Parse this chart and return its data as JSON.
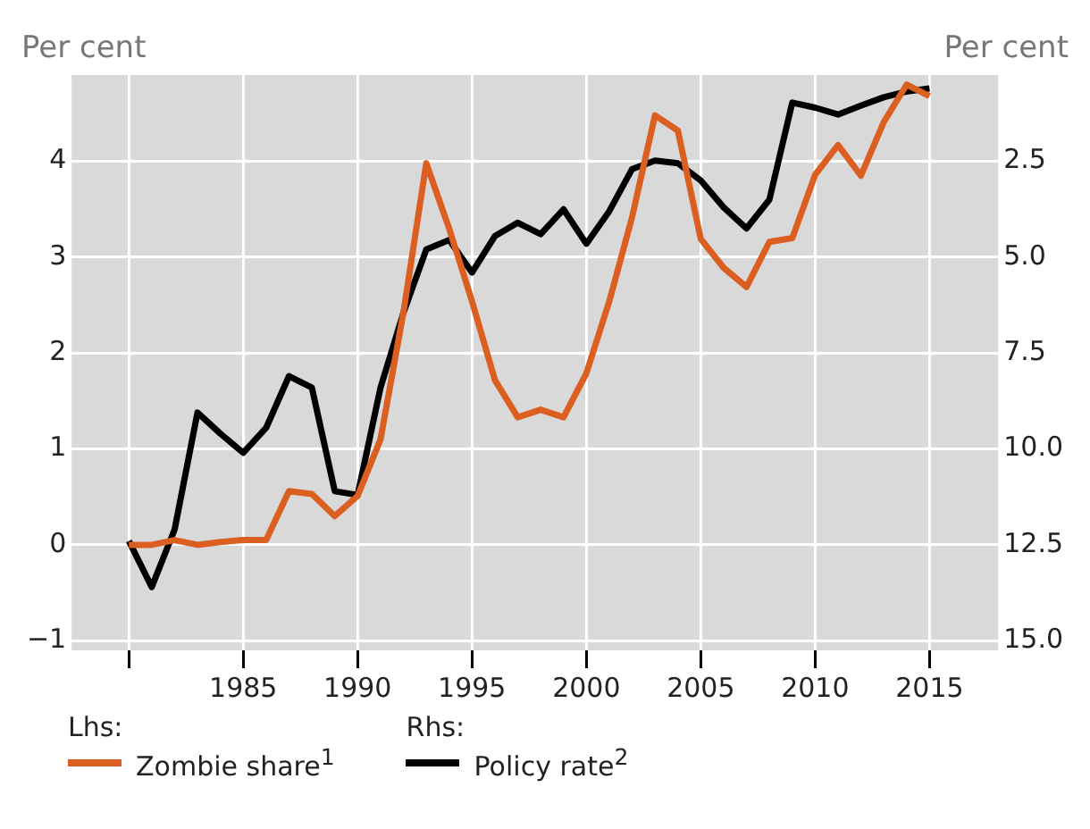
{
  "chart_data": {
    "type": "line",
    "ylabel": "Per cent",
    "y2label": "Per cent",
    "annotations": [
      "Lhs:",
      "Rhs:"
    ],
    "x": [
      1980,
      1981,
      1982,
      1983,
      1984,
      1985,
      1986,
      1987,
      1988,
      1989,
      1990,
      1991,
      1992,
      1993,
      1994,
      1995,
      1996,
      1997,
      1998,
      1999,
      2000,
      2001,
      2002,
      2003,
      2004,
      2005,
      2006,
      2007,
      2008,
      2009,
      2010,
      2011,
      2012,
      2013,
      2014,
      2015
    ],
    "series": [
      {
        "name": "Zombie share$^{1}$",
        "color": "#dc5f22",
        "values": [
          0.0,
          0.0,
          0.05,
          0.0,
          0.03,
          0.05,
          0.05,
          0.56,
          0.53,
          0.3,
          0.51,
          1.1,
          2.42,
          3.98,
          3.3,
          2.54,
          1.72,
          1.33,
          1.41,
          1.33,
          1.79,
          2.54,
          3.42,
          4.48,
          4.32,
          3.19,
          2.89,
          2.69,
          3.16,
          3.2,
          3.86,
          4.17,
          3.85,
          4.41,
          4.8,
          4.68
        ]
      },
      {
        "name": "Policy rate$^{2}$",
        "color": "#000000",
        "axis": "y2",
        "values": [
          12.4,
          13.6,
          12.1,
          9.05,
          9.6,
          10.1,
          9.45,
          8.1,
          8.4,
          11.1,
          11.2,
          8.4,
          6.45,
          4.8,
          4.55,
          5.4,
          4.45,
          4.1,
          4.4,
          3.75,
          4.65,
          3.8,
          2.7,
          2.48,
          2.55,
          3.0,
          3.7,
          4.25,
          3.5,
          0.97,
          1.1,
          1.28,
          1.05,
          0.83,
          0.68,
          0.6
        ]
      }
    ],
    "xlim": [
      1977.5,
      2018
    ],
    "xticks": [
      {
        "value": 1980,
        "label": null
      },
      1985,
      1990,
      1995,
      2000,
      2005,
      2010,
      2015
    ],
    "ylim": [
      -1.1,
      4.9
    ],
    "yticks": [
      {
        "value": -1,
        "label": "−1"
      },
      0,
      1,
      2,
      3,
      4
    ],
    "y2lim": [
      15.25,
      0.25
    ],
    "y2ticks": [
      {
        "value": 2.5,
        "label": "2.5"
      },
      {
        "value": 5,
        "label": "5.0"
      },
      {
        "value": 7.5,
        "label": "7.5"
      },
      {
        "value": 10,
        "label": "10.0"
      },
      {
        "value": 12.5,
        "label": "12.5"
      },
      {
        "value": 15,
        "label": "15.0"
      }
    ],
    "grid": true,
    "legend": "bottom",
    "marker": "none",
    "line_style": "solid"
  }
}
